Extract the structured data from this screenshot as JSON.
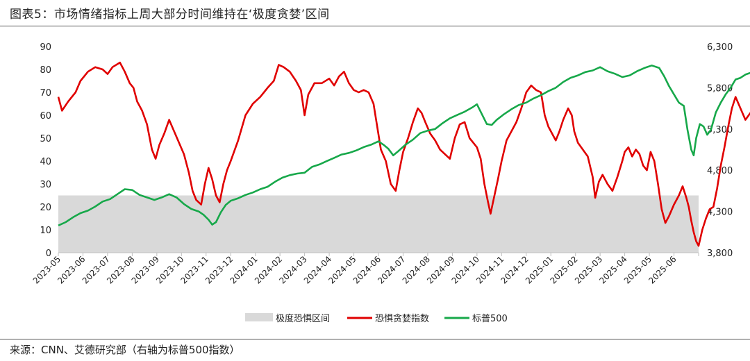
{
  "header": {
    "title": "图表5：市场情绪指标上周大部分时间维持在‘极度贪婪’区间"
  },
  "footer": {
    "source": "来源：CNN、艾德研究部（右轴为标普500指数）"
  },
  "colors": {
    "fear_greed": "#e00000",
    "sp500": "#17a84a",
    "zone": "#d9d9d9",
    "axis": "#bfbfbf"
  },
  "chart_data": {
    "type": "line",
    "title": "图表5：市场情绪指标上周大部分时间维持在‘极度贪婪’区间",
    "x_categories": [
      "2023-05",
      "2023-06",
      "2023-07",
      "2023-08",
      "2023-09",
      "2023-10",
      "2023-11",
      "2023-12",
      "2024-01",
      "2024-02",
      "2024-03",
      "2024-04",
      "2024-05",
      "2024-06",
      "2024-07",
      "2024-08",
      "2024-09",
      "2024-10",
      "2024-11",
      "2024-12",
      "2025-01",
      "2025-02",
      "2025-03",
      "2025-04",
      "2025-05",
      "2025-06"
    ],
    "y_left": {
      "ylim": [
        0,
        90
      ],
      "ticks": [
        "0",
        "10",
        "20",
        "30",
        "40",
        "50",
        "60",
        "70",
        "80",
        "90"
      ]
    },
    "y_right": {
      "ylim": [
        3800,
        6300
      ],
      "ticks": [
        "3,800",
        "4,300",
        "4,800",
        "5,300",
        "5,800",
        "6,300"
      ]
    },
    "extreme_fear_zone": {
      "from": 0,
      "to": 25
    },
    "legend": {
      "position": "bottom",
      "items": [
        "极度恐惧区间",
        "恐惧贪婪指数",
        "标普500"
      ]
    },
    "series": [
      {
        "name": "恐惧贪婪指数",
        "axis": "left",
        "points": [
          [
            0.0,
            68
          ],
          [
            0.15,
            62
          ],
          [
            0.4,
            66
          ],
          [
            0.7,
            70
          ],
          [
            0.9,
            75
          ],
          [
            1.2,
            79
          ],
          [
            1.5,
            81
          ],
          [
            1.8,
            80
          ],
          [
            2.0,
            78
          ],
          [
            2.2,
            81
          ],
          [
            2.5,
            83
          ],
          [
            2.7,
            79
          ],
          [
            2.9,
            74
          ],
          [
            3.05,
            72
          ],
          [
            3.2,
            66
          ],
          [
            3.4,
            62
          ],
          [
            3.6,
            56
          ],
          [
            3.8,
            45
          ],
          [
            3.95,
            41
          ],
          [
            4.1,
            47
          ],
          [
            4.3,
            52
          ],
          [
            4.5,
            58
          ],
          [
            4.7,
            53
          ],
          [
            4.9,
            48
          ],
          [
            5.1,
            43
          ],
          [
            5.3,
            35
          ],
          [
            5.45,
            27
          ],
          [
            5.6,
            23
          ],
          [
            5.8,
            21
          ],
          [
            5.95,
            30
          ],
          [
            6.1,
            37
          ],
          [
            6.25,
            32
          ],
          [
            6.4,
            25
          ],
          [
            6.55,
            22
          ],
          [
            6.7,
            30
          ],
          [
            6.85,
            36
          ],
          [
            7.0,
            40
          ],
          [
            7.3,
            49
          ],
          [
            7.6,
            60
          ],
          [
            7.9,
            65
          ],
          [
            8.2,
            68
          ],
          [
            8.5,
            72
          ],
          [
            8.75,
            75
          ],
          [
            8.95,
            82
          ],
          [
            9.15,
            81
          ],
          [
            9.4,
            79
          ],
          [
            9.65,
            75
          ],
          [
            9.85,
            71
          ],
          [
            10.0,
            60
          ],
          [
            10.15,
            69
          ],
          [
            10.4,
            74
          ],
          [
            10.7,
            74
          ],
          [
            11.0,
            76
          ],
          [
            11.2,
            73
          ],
          [
            11.4,
            77
          ],
          [
            11.6,
            79
          ],
          [
            11.8,
            74
          ],
          [
            12.0,
            71
          ],
          [
            12.2,
            70
          ],
          [
            12.4,
            71
          ],
          [
            12.6,
            70
          ],
          [
            12.8,
            65
          ],
          [
            12.95,
            55
          ],
          [
            13.1,
            45
          ],
          [
            13.3,
            40
          ],
          [
            13.5,
            30
          ],
          [
            13.7,
            27
          ],
          [
            13.85,
            36
          ],
          [
            14.0,
            44
          ],
          [
            14.2,
            50
          ],
          [
            14.4,
            57
          ],
          [
            14.6,
            63
          ],
          [
            14.75,
            61
          ],
          [
            14.9,
            57
          ],
          [
            15.1,
            52
          ],
          [
            15.3,
            49
          ],
          [
            15.5,
            45
          ],
          [
            15.7,
            43
          ],
          [
            15.9,
            41
          ],
          [
            16.1,
            50
          ],
          [
            16.3,
            56
          ],
          [
            16.5,
            57
          ],
          [
            16.7,
            50
          ],
          [
            16.85,
            48
          ],
          [
            17.0,
            46
          ],
          [
            17.15,
            41
          ],
          [
            17.3,
            30
          ],
          [
            17.45,
            22
          ],
          [
            17.55,
            17
          ],
          [
            17.65,
            22
          ],
          [
            17.85,
            32
          ],
          [
            18.0,
            40
          ],
          [
            18.2,
            49
          ],
          [
            18.4,
            53
          ],
          [
            18.6,
            57
          ],
          [
            18.8,
            63
          ],
          [
            19.0,
            70
          ],
          [
            19.2,
            73
          ],
          [
            19.4,
            71
          ],
          [
            19.6,
            70
          ],
          [
            19.75,
            60
          ],
          [
            19.9,
            55
          ],
          [
            20.05,
            52
          ],
          [
            20.2,
            49
          ],
          [
            20.35,
            53
          ],
          [
            20.5,
            58
          ],
          [
            20.7,
            63
          ],
          [
            20.85,
            60
          ],
          [
            20.95,
            53
          ],
          [
            21.1,
            48
          ],
          [
            21.3,
            45
          ],
          [
            21.5,
            42
          ],
          [
            21.7,
            33
          ],
          [
            21.8,
            24
          ],
          [
            21.95,
            31
          ],
          [
            22.1,
            34
          ],
          [
            22.3,
            30
          ],
          [
            22.5,
            27
          ],
          [
            22.7,
            33
          ],
          [
            22.9,
            40
          ],
          [
            23.0,
            44
          ],
          [
            23.15,
            46
          ],
          [
            23.3,
            42
          ],
          [
            23.45,
            45
          ],
          [
            23.6,
            43
          ],
          [
            23.75,
            38
          ],
          [
            23.9,
            36
          ],
          [
            24.05,
            44
          ],
          [
            24.2,
            40
          ],
          [
            24.35,
            30
          ],
          [
            24.5,
            19
          ],
          [
            24.65,
            13
          ],
          [
            24.8,
            16
          ],
          [
            25.0,
            21
          ],
          [
            25.2,
            25
          ],
          [
            25.35,
            29
          ],
          [
            25.5,
            24
          ],
          [
            25.6,
            20
          ],
          [
            25.7,
            14
          ],
          [
            25.8,
            9
          ],
          [
            25.9,
            5
          ],
          [
            26.0,
            3
          ],
          [
            26.15,
            10
          ],
          [
            26.3,
            15
          ],
          [
            26.45,
            19
          ],
          [
            26.6,
            20
          ],
          [
            26.75,
            28
          ],
          [
            26.9,
            38
          ],
          [
            27.05,
            46
          ],
          [
            27.2,
            55
          ],
          [
            27.35,
            63
          ],
          [
            27.5,
            68
          ],
          [
            27.7,
            63
          ],
          [
            27.9,
            58
          ],
          [
            28.1,
            61
          ],
          [
            28.3,
            55
          ],
          [
            28.5,
            60
          ],
          [
            28.7,
            58
          ],
          [
            28.9,
            62
          ],
          [
            29.05,
            68
          ],
          [
            29.2,
            78
          ],
          [
            29.35,
            77
          ],
          [
            29.5,
            74
          ],
          [
            29.6,
            75
          ]
        ]
      },
      {
        "name": "标普500",
        "axis": "right",
        "points": [
          [
            0.0,
            4130
          ],
          [
            0.3,
            4170
          ],
          [
            0.6,
            4230
          ],
          [
            0.9,
            4280
          ],
          [
            1.2,
            4310
          ],
          [
            1.5,
            4360
          ],
          [
            1.8,
            4420
          ],
          [
            2.1,
            4450
          ],
          [
            2.4,
            4510
          ],
          [
            2.7,
            4570
          ],
          [
            3.0,
            4560
          ],
          [
            3.3,
            4500
          ],
          [
            3.6,
            4470
          ],
          [
            3.9,
            4440
          ],
          [
            4.2,
            4470
          ],
          [
            4.5,
            4510
          ],
          [
            4.8,
            4470
          ],
          [
            5.1,
            4390
          ],
          [
            5.4,
            4330
          ],
          [
            5.7,
            4300
          ],
          [
            5.9,
            4260
          ],
          [
            6.1,
            4200
          ],
          [
            6.25,
            4140
          ],
          [
            6.4,
            4170
          ],
          [
            6.6,
            4290
          ],
          [
            6.8,
            4380
          ],
          [
            7.0,
            4430
          ],
          [
            7.3,
            4460
          ],
          [
            7.6,
            4500
          ],
          [
            7.9,
            4530
          ],
          [
            8.2,
            4570
          ],
          [
            8.5,
            4600
          ],
          [
            8.8,
            4660
          ],
          [
            9.1,
            4710
          ],
          [
            9.4,
            4740
          ],
          [
            9.7,
            4760
          ],
          [
            10.0,
            4770
          ],
          [
            10.3,
            4840
          ],
          [
            10.6,
            4870
          ],
          [
            10.9,
            4910
          ],
          [
            11.2,
            4950
          ],
          [
            11.5,
            4990
          ],
          [
            11.8,
            5010
          ],
          [
            12.1,
            5040
          ],
          [
            12.4,
            5080
          ],
          [
            12.7,
            5110
          ],
          [
            13.0,
            5150
          ],
          [
            13.2,
            5110
          ],
          [
            13.4,
            5060
          ],
          [
            13.6,
            4980
          ],
          [
            13.8,
            5030
          ],
          [
            14.1,
            5110
          ],
          [
            14.4,
            5170
          ],
          [
            14.7,
            5250
          ],
          [
            15.0,
            5280
          ],
          [
            15.3,
            5300
          ],
          [
            15.6,
            5370
          ],
          [
            15.9,
            5430
          ],
          [
            16.2,
            5470
          ],
          [
            16.5,
            5510
          ],
          [
            16.8,
            5560
          ],
          [
            17.0,
            5600
          ],
          [
            17.2,
            5480
          ],
          [
            17.4,
            5360
          ],
          [
            17.6,
            5350
          ],
          [
            17.8,
            5410
          ],
          [
            18.1,
            5480
          ],
          [
            18.4,
            5540
          ],
          [
            18.7,
            5590
          ],
          [
            19.0,
            5620
          ],
          [
            19.3,
            5670
          ],
          [
            19.6,
            5710
          ],
          [
            19.9,
            5760
          ],
          [
            20.2,
            5800
          ],
          [
            20.5,
            5870
          ],
          [
            20.8,
            5920
          ],
          [
            21.1,
            5950
          ],
          [
            21.4,
            5990
          ],
          [
            21.7,
            6010
          ],
          [
            22.0,
            6050
          ],
          [
            22.3,
            6000
          ],
          [
            22.6,
            5970
          ],
          [
            22.9,
            5930
          ],
          [
            23.2,
            5950
          ],
          [
            23.5,
            6000
          ],
          [
            23.8,
            6040
          ],
          [
            24.1,
            6070
          ],
          [
            24.4,
            6040
          ],
          [
            24.6,
            5940
          ],
          [
            24.8,
            5820
          ],
          [
            25.0,
            5720
          ],
          [
            25.2,
            5620
          ],
          [
            25.4,
            5580
          ],
          [
            25.55,
            5290
          ],
          [
            25.7,
            5050
          ],
          [
            25.8,
            4980
          ],
          [
            25.9,
            5190
          ],
          [
            26.05,
            5360
          ],
          [
            26.2,
            5330
          ],
          [
            26.35,
            5230
          ],
          [
            26.5,
            5290
          ],
          [
            26.7,
            5500
          ],
          [
            26.9,
            5620
          ],
          [
            27.1,
            5720
          ],
          [
            27.3,
            5800
          ],
          [
            27.5,
            5900
          ],
          [
            27.7,
            5920
          ],
          [
            27.9,
            5960
          ],
          [
            28.1,
            5980
          ],
          [
            28.3,
            6000
          ],
          [
            28.5,
            6030
          ],
          [
            28.7,
            6070
          ],
          [
            28.9,
            6100
          ],
          [
            29.05,
            6180
          ],
          [
            29.2,
            6240
          ],
          [
            29.35,
            6210
          ],
          [
            29.5,
            6250
          ],
          [
            29.6,
            6230
          ]
        ]
      }
    ]
  }
}
